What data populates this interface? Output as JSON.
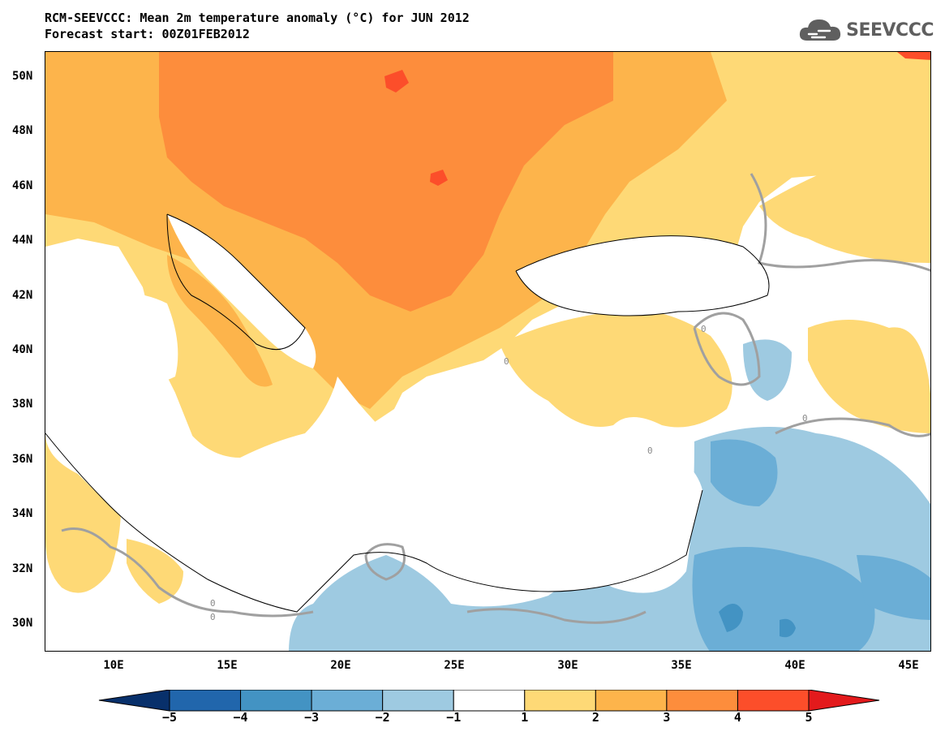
{
  "header": {
    "title_line1": "RCM-SEEVCCC: Mean 2m temperature anomaly (°C) for JUN 2012",
    "title_line2": "Forecast start: 00Z01FEB2012"
  },
  "logo": {
    "text": "SEEVCCC",
    "icon": "cloud-icon"
  },
  "map": {
    "lat_labels": [
      "50N",
      "48N",
      "46N",
      "44N",
      "42N",
      "40N",
      "38N",
      "36N",
      "34N",
      "32N",
      "30N"
    ],
    "lon_labels": [
      "10E",
      "15E",
      "20E",
      "25E",
      "30E",
      "35E",
      "40E",
      "45E"
    ],
    "contour_label": "0"
  },
  "colorbar": {
    "labels": [
      "−5",
      "−4",
      "−3",
      "−2",
      "−1",
      "1",
      "2",
      "3",
      "4",
      "5"
    ],
    "colors": [
      "#08306b",
      "#2166ac",
      "#4393c3",
      "#6baed6",
      "#9ecae1",
      "#ffffff",
      "#fed976",
      "#fdb44b",
      "#fd8d3c",
      "#fc4e2a",
      "#e31a1c"
    ]
  },
  "colors": {
    "anom_plus1": "#fed976",
    "anom_plus2": "#fdb44b",
    "anom_plus3": "#fd8d3c",
    "anom_plus4": "#fc4e2a",
    "anom_minus1": "#9ecae1",
    "anom_minus2": "#6baed6",
    "anom_minus3": "#4393c3",
    "contour_zero": "#a0a0a0"
  }
}
